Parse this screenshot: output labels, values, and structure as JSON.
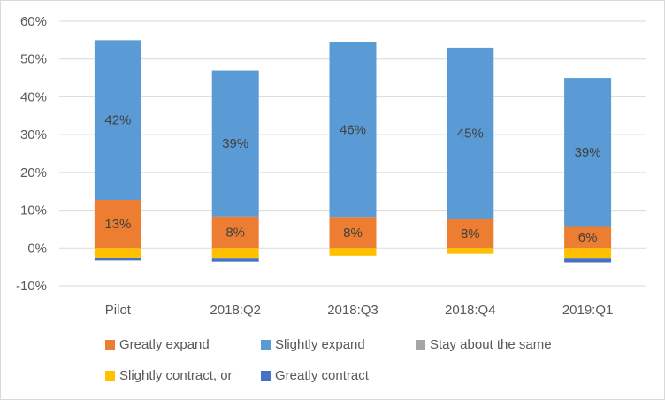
{
  "chart_data": {
    "type": "bar",
    "stacked": true,
    "categories": [
      "Pilot",
      "2018:Q2",
      "2018:Q3",
      "2018:Q4",
      "2019:Q1"
    ],
    "series": [
      {
        "name": "Greatly expand",
        "color": "#ED7D31",
        "values": [
          12.7,
          8.3,
          8.2,
          7.7,
          5.8
        ],
        "labels": [
          "13%",
          "8%",
          "8%",
          "8%",
          "6%"
        ]
      },
      {
        "name": "Slightly expand",
        "color": "#5B9BD5",
        "values": [
          42.3,
          38.7,
          46.3,
          45.3,
          39.2
        ],
        "labels": [
          "42%",
          "39%",
          "46%",
          "45%",
          "39%"
        ]
      },
      {
        "name": "Stay about the same",
        "color": "#A5A5A5",
        "values": [
          0,
          0,
          0,
          0,
          0
        ],
        "labels": [
          "",
          "",
          "",
          "",
          ""
        ]
      },
      {
        "name": "Slightly contract, or",
        "color": "#FFC000",
        "values": [
          -2.5,
          -2.8,
          -2.0,
          -1.5,
          -2.8
        ],
        "labels": [
          "",
          "",
          "",
          "",
          ""
        ]
      },
      {
        "name": "Greatly contract",
        "color": "#4472C4",
        "values": [
          -0.8,
          -0.8,
          0,
          0,
          -1.0
        ],
        "labels": [
          "",
          "",
          "",
          "",
          ""
        ]
      }
    ],
    "ylim": [
      -10,
      60
    ],
    "yticks": [
      -10,
      0,
      10,
      20,
      30,
      40,
      50,
      60
    ],
    "ytick_labels": [
      "-10%",
      "0%",
      "10%",
      "20%",
      "30%",
      "40%",
      "50%",
      "60%"
    ],
    "grid": true,
    "legend_position": "bottom",
    "title": "",
    "xlabel": "",
    "ylabel": ""
  }
}
